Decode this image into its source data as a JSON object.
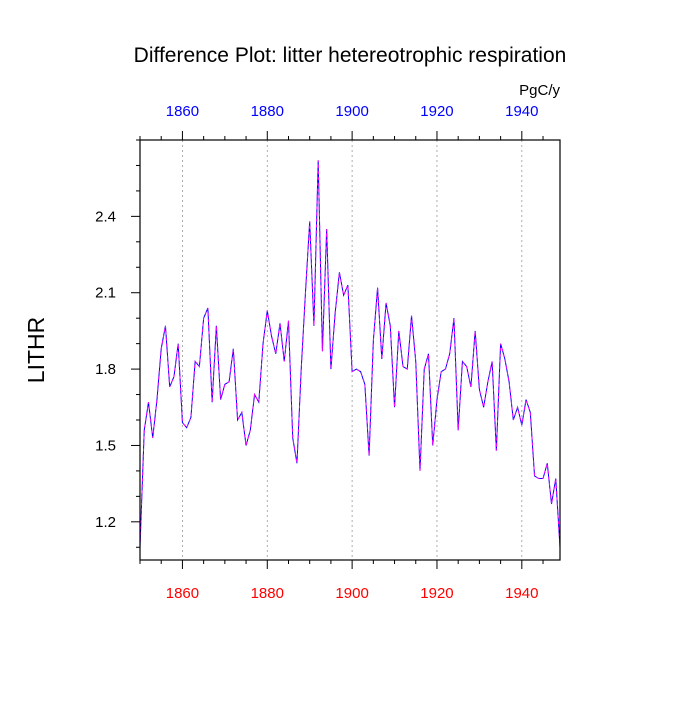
{
  "chart_data": {
    "type": "line",
    "title": "Difference Plot: litter hetereotrophic respiration",
    "units": "PgC/y",
    "ylabel": "LITHR",
    "xlabel": "",
    "xlim": [
      1850,
      1949
    ],
    "ylim": [
      1.05,
      2.7
    ],
    "x_ticks": [
      1860,
      1880,
      1900,
      1920,
      1940
    ],
    "y_ticks": [
      1.2,
      1.5,
      1.8,
      2.1,
      2.4
    ],
    "x_tick_labels": [
      "1860",
      "1880",
      "1900",
      "1920",
      "1940"
    ],
    "y_tick_labels": [
      "1.2",
      "1.5",
      "1.8",
      "2.1",
      "2.4"
    ],
    "colors": {
      "bottom_axis": "#ff0000",
      "top_axis": "#0000ff",
      "series_a": "#0000ff",
      "series_b": "#ff00ff"
    },
    "grid": "vertical-dotted",
    "series": [
      {
        "x": [
          1850,
          1851,
          1852,
          1853,
          1854,
          1855,
          1856,
          1857,
          1858,
          1859,
          1860,
          1861,
          1862,
          1863,
          1864,
          1865,
          1866,
          1867,
          1868,
          1869,
          1870,
          1871,
          1872,
          1873,
          1874,
          1875,
          1876,
          1877,
          1878,
          1879,
          1880,
          1881,
          1882,
          1883,
          1884,
          1885,
          1886,
          1887,
          1888,
          1889,
          1890,
          1891,
          1892,
          1893,
          1894,
          1895,
          1896,
          1897,
          1898,
          1899,
          1900,
          1901,
          1902,
          1903,
          1904,
          1905,
          1906,
          1907,
          1908,
          1909,
          1910,
          1911,
          1912,
          1913,
          1914,
          1915,
          1916,
          1917,
          1918,
          1919,
          1920,
          1921,
          1922,
          1923,
          1924,
          1925,
          1926,
          1927,
          1928,
          1929,
          1930,
          1931,
          1932,
          1933,
          1934,
          1935,
          1936,
          1937,
          1938,
          1939,
          1940,
          1941,
          1942,
          1943,
          1944,
          1945,
          1946,
          1947,
          1948,
          1949
        ],
        "values": [
          1.1,
          1.56,
          1.67,
          1.53,
          1.68,
          1.88,
          1.97,
          1.73,
          1.77,
          1.9,
          1.59,
          1.57,
          1.61,
          1.83,
          1.81,
          2.0,
          2.04,
          1.67,
          1.97,
          1.68,
          1.74,
          1.75,
          1.88,
          1.6,
          1.63,
          1.5,
          1.56,
          1.7,
          1.67,
          1.9,
          2.03,
          1.93,
          1.86,
          1.98,
          1.83,
          1.99,
          1.53,
          1.43,
          1.8,
          2.1,
          2.38,
          1.97,
          2.62,
          1.87,
          2.35,
          1.8,
          2.02,
          2.18,
          2.09,
          2.13,
          1.79,
          1.8,
          1.79,
          1.74,
          1.46,
          1.91,
          2.12,
          1.84,
          2.06,
          1.97,
          1.65,
          1.95,
          1.81,
          1.8,
          2.01,
          1.83,
          1.4,
          1.8,
          1.86,
          1.5,
          1.68,
          1.79,
          1.8,
          1.86,
          2.0,
          1.56,
          1.83,
          1.81,
          1.73,
          1.95,
          1.72,
          1.65,
          1.75,
          1.83,
          1.48,
          1.9,
          1.84,
          1.75,
          1.6,
          1.65,
          1.58,
          1.68,
          1.63,
          1.38,
          1.37,
          1.37,
          1.43,
          1.27,
          1.37,
          1.1
        ]
      }
    ]
  }
}
